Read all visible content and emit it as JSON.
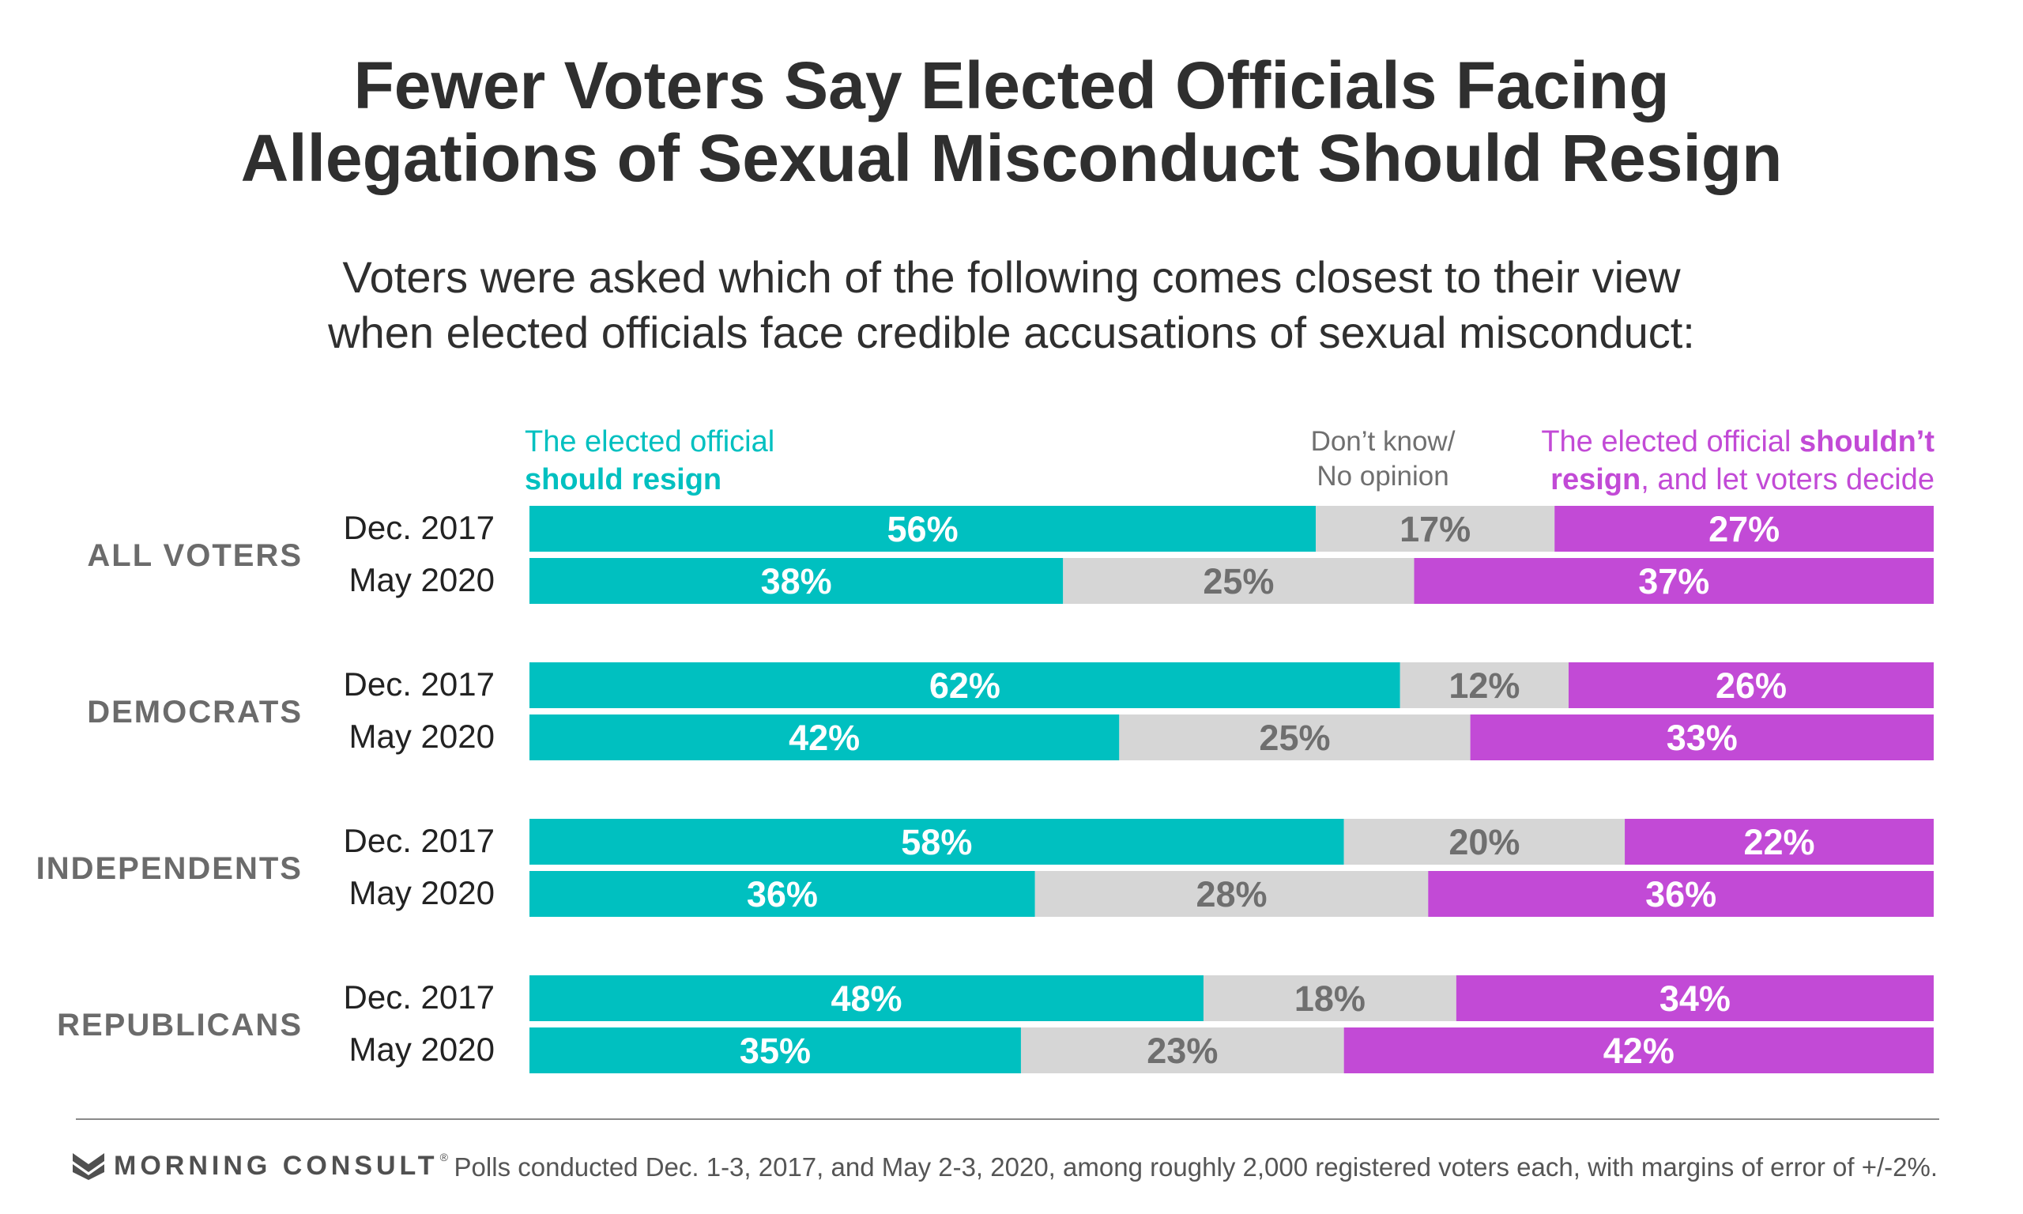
{
  "title_lines": [
    "Fewer Voters Say Elected Officials Facing",
    "Allegations of Sexual Misconduct Should Resign"
  ],
  "subtitle_lines": [
    "Voters were asked which of the following comes closest to their view",
    "when elected officials face credible accusations of sexual misconduct:"
  ],
  "legend": {
    "resign_line1": "The elected official",
    "resign_line2": "should resign",
    "dk_line1": "Don’t know/",
    "dk_line2": "No opinion",
    "not_line1_plain": "The elected official ",
    "not_line1_bold": "shouldn’t",
    "not_line2_bold": "resign",
    "not_line2_plain": ", and let voters decide"
  },
  "colors": {
    "resign": "#00c0c0",
    "dk": "#d6d6d6",
    "not": "#c24ad6",
    "dk_text": "#6f6f6f"
  },
  "chart_data": {
    "type": "bar",
    "stacked": true,
    "orientation": "horizontal",
    "value_suffix": "%",
    "series_names": [
      "The elected official should resign",
      "Don’t know/No opinion",
      "The elected official shouldn’t resign, and let voters decide"
    ],
    "groups": [
      {
        "label": "ALL VOTERS",
        "rows": [
          {
            "label": "Dec. 2017",
            "values": [
              56,
              17,
              27
            ]
          },
          {
            "label": "May 2020",
            "values": [
              38,
              25,
              37
            ]
          }
        ]
      },
      {
        "label": "DEMOCRATS",
        "rows": [
          {
            "label": "Dec. 2017",
            "values": [
              62,
              12,
              26
            ]
          },
          {
            "label": "May 2020",
            "values": [
              42,
              25,
              33
            ]
          }
        ]
      },
      {
        "label": "INDEPENDENTS",
        "rows": [
          {
            "label": "Dec. 2017",
            "values": [
              58,
              20,
              22
            ]
          },
          {
            "label": "May 2020",
            "values": [
              36,
              28,
              36
            ]
          }
        ]
      },
      {
        "label": "REPUBLICANS",
        "rows": [
          {
            "label": "Dec. 2017",
            "values": [
              48,
              18,
              34
            ]
          },
          {
            "label": "May 2020",
            "values": [
              35,
              23,
              42
            ]
          }
        ]
      }
    ]
  },
  "footer": {
    "logo_text": "MORNING CONSULT",
    "logo_tm": "®",
    "note": "Polls conducted Dec. 1-3, 2017, and May 2-3, 2020, among roughly 2,000 registered voters each, with margins of error of +/-2%."
  }
}
